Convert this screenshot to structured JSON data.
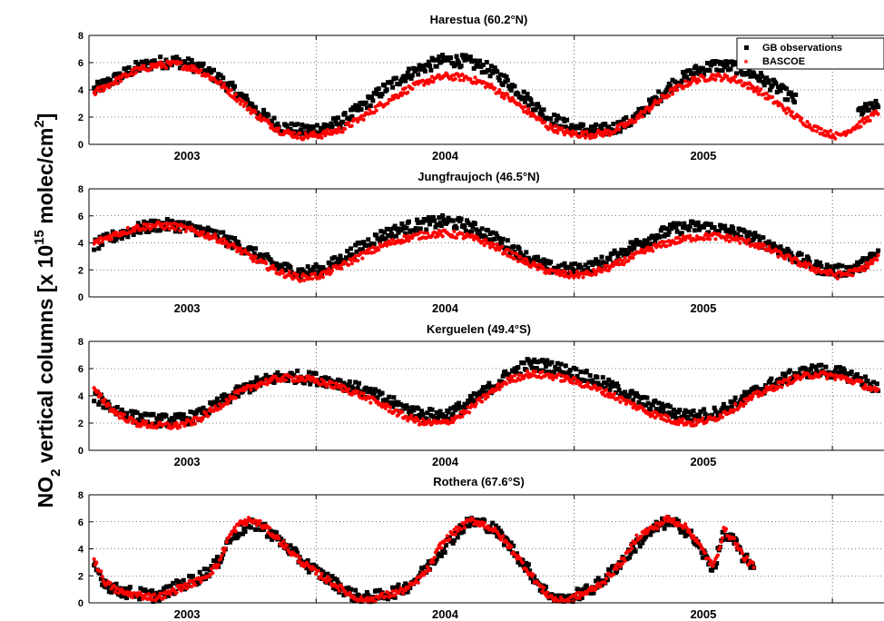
{
  "figure": {
    "ylabel_main": "NO",
    "ylabel_sub": "2",
    "ylabel_mid": " vertical columns [x 10",
    "ylabel_sup": "15",
    "ylabel_unit": " molec/cm",
    "ylabel_unit_sup": "2",
    "ylabel_end": "]"
  },
  "legend": {
    "obs_label": "GB observations",
    "model_label": "BASCOE",
    "obs_color": "#000000",
    "model_color": "#ff0000"
  },
  "chart_data": [
    {
      "type": "scatter",
      "title": "Harestua (60.2°N)",
      "xlim": [
        2002.62,
        2005.7
      ],
      "ylim": [
        0,
        8
      ],
      "yticks": [
        0,
        2,
        4,
        6,
        8
      ],
      "xticks": [
        2003,
        2004,
        2005
      ],
      "xtick_label_positions": [
        2003.0,
        2004.0,
        2005.0
      ],
      "grid": true,
      "legend_position": "top-right",
      "series": [
        {
          "name": "GB observations",
          "color": "#000000",
          "marker": "square",
          "x": [
            2002.64,
            2002.72,
            2002.8,
            2002.88,
            2002.96,
            2003.04,
            2003.12,
            2003.2,
            2003.28,
            2003.36,
            2003.44,
            2003.52,
            2003.6,
            2003.68,
            2003.76,
            2003.84,
            2003.92,
            2004.0,
            2004.08,
            2004.16,
            2004.24,
            2004.32,
            2004.4,
            2004.48,
            2004.56,
            2004.64,
            2004.72,
            2004.8,
            2004.88,
            2004.96,
            2005.04,
            2005.12,
            2005.2,
            2005.28,
            2005.36,
            2005.44,
            2005.52,
            2005.6,
            2005.68
          ],
          "y": [
            4.0,
            4.8,
            5.6,
            6.0,
            6.1,
            5.7,
            4.9,
            3.7,
            2.3,
            1.3,
            1.0,
            1.2,
            1.7,
            2.8,
            4.0,
            5.0,
            5.7,
            6.2,
            6.1,
            5.6,
            4.6,
            3.3,
            2.0,
            1.3,
            1.0,
            1.1,
            1.7,
            3.0,
            4.4,
            5.3,
            5.8,
            5.7,
            5.1,
            4.2,
            3.2,
            null,
            null,
            2.4,
            2.8
          ]
        },
        {
          "name": "BASCOE",
          "color": "#ff0000",
          "marker": "star",
          "x": [
            2002.64,
            2002.72,
            2002.8,
            2002.88,
            2002.96,
            2003.04,
            2003.12,
            2003.2,
            2003.28,
            2003.36,
            2003.44,
            2003.52,
            2003.6,
            2003.68,
            2003.76,
            2003.84,
            2003.92,
            2004.0,
            2004.08,
            2004.16,
            2004.24,
            2004.32,
            2004.4,
            2004.48,
            2004.56,
            2004.64,
            2004.72,
            2004.8,
            2004.88,
            2004.96,
            2005.04,
            2005.12,
            2005.2,
            2005.28,
            2005.36,
            2005.44,
            2005.52,
            2005.6,
            2005.68
          ],
          "y": [
            3.8,
            4.6,
            5.4,
            5.8,
            5.9,
            5.5,
            4.6,
            3.3,
            2.0,
            1.0,
            0.6,
            0.7,
            1.1,
            2.0,
            3.0,
            3.9,
            4.6,
            5.0,
            4.9,
            4.4,
            3.5,
            2.4,
            1.3,
            0.8,
            0.7,
            0.9,
            1.6,
            2.8,
            3.9,
            4.7,
            5.0,
            4.8,
            4.1,
            3.1,
            2.0,
            1.1,
            0.6,
            1.4,
            2.4
          ]
        }
      ]
    },
    {
      "type": "scatter",
      "title": "Jungfraujoch (46.5°N)",
      "xlim": [
        2002.62,
        2005.7
      ],
      "ylim": [
        0,
        8
      ],
      "yticks": [
        0,
        2,
        4,
        6,
        8
      ],
      "xticks": [
        2003,
        2004,
        2005
      ],
      "grid": true,
      "series": [
        {
          "name": "GB observations",
          "color": "#000000",
          "marker": "square",
          "x": [
            2002.64,
            2002.72,
            2002.8,
            2002.88,
            2002.96,
            2003.04,
            2003.12,
            2003.2,
            2003.28,
            2003.36,
            2003.44,
            2003.52,
            2003.6,
            2003.68,
            2003.76,
            2003.84,
            2003.92,
            2004.0,
            2004.08,
            2004.16,
            2004.24,
            2004.32,
            2004.4,
            2004.48,
            2004.56,
            2004.64,
            2004.72,
            2004.8,
            2004.88,
            2004.96,
            2005.04,
            2005.12,
            2005.2,
            2005.28,
            2005.36,
            2005.44,
            2005.52,
            2005.6,
            2005.68
          ],
          "y": [
            3.8,
            4.5,
            5.0,
            5.3,
            5.3,
            5.0,
            4.5,
            3.8,
            3.0,
            2.2,
            1.8,
            2.0,
            2.8,
            3.8,
            4.6,
            5.1,
            5.4,
            5.6,
            5.3,
            4.7,
            3.8,
            2.9,
            2.2,
            2.0,
            2.2,
            2.8,
            3.7,
            4.4,
            5.0,
            5.2,
            5.1,
            4.8,
            4.3,
            3.7,
            2.9,
            2.2,
            1.9,
            2.2,
            3.2
          ]
        },
        {
          "name": "BASCOE",
          "color": "#ff0000",
          "marker": "star",
          "x": [
            2002.64,
            2002.72,
            2002.8,
            2002.88,
            2002.96,
            2003.04,
            2003.12,
            2003.2,
            2003.28,
            2003.36,
            2003.44,
            2003.52,
            2003.6,
            2003.68,
            2003.76,
            2003.84,
            2003.92,
            2004.0,
            2004.08,
            2004.16,
            2004.24,
            2004.32,
            2004.4,
            2004.48,
            2004.56,
            2004.64,
            2004.72,
            2004.8,
            2004.88,
            2004.96,
            2005.04,
            2005.12,
            2005.2,
            2005.28,
            2005.36,
            2005.44,
            2005.52,
            2005.6,
            2005.68
          ],
          "y": [
            4.0,
            4.6,
            5.1,
            5.3,
            5.2,
            4.8,
            4.3,
            3.5,
            2.6,
            1.8,
            1.4,
            1.6,
            2.3,
            3.1,
            3.8,
            4.3,
            4.6,
            4.7,
            4.5,
            4.0,
            3.3,
            2.5,
            1.9,
            1.6,
            1.7,
            2.2,
            2.9,
            3.6,
            4.1,
            4.4,
            4.5,
            4.3,
            3.9,
            3.3,
            2.6,
            2.0,
            1.6,
            1.9,
            2.9
          ]
        }
      ]
    },
    {
      "type": "scatter",
      "title": "Kerguelen (49.4°S)",
      "xlim": [
        2002.62,
        2005.7
      ],
      "ylim": [
        0,
        8
      ],
      "yticks": [
        0,
        2,
        4,
        6,
        8
      ],
      "xticks": [
        2003,
        2004,
        2005
      ],
      "grid": true,
      "series": [
        {
          "name": "GB observations",
          "color": "#000000",
          "marker": "square",
          "x": [
            2002.64,
            2002.72,
            2002.8,
            2002.88,
            2002.96,
            2003.04,
            2003.12,
            2003.2,
            2003.28,
            2003.36,
            2003.44,
            2003.52,
            2003.6,
            2003.68,
            2003.76,
            2003.84,
            2003.92,
            2004.0,
            2004.08,
            2004.16,
            2004.24,
            2004.32,
            2004.4,
            2004.48,
            2004.56,
            2004.64,
            2004.72,
            2004.8,
            2004.88,
            2004.96,
            2005.04,
            2005.12,
            2005.2,
            2005.28,
            2005.36,
            2005.44,
            2005.52,
            2005.6,
            2005.68
          ],
          "y": [
            4.0,
            3.0,
            2.4,
            2.2,
            2.2,
            2.5,
            3.4,
            4.3,
            5.0,
            5.4,
            5.4,
            5.2,
            4.9,
            4.4,
            3.8,
            3.1,
            2.6,
            2.6,
            3.3,
            4.4,
            5.5,
            6.3,
            6.2,
            5.8,
            5.3,
            4.7,
            4.0,
            3.3,
            2.8,
            2.5,
            2.7,
            3.4,
            4.3,
            5.0,
            5.6,
            5.9,
            5.7,
            5.3,
            4.5
          ]
        },
        {
          "name": "BASCOE",
          "color": "#ff0000",
          "marker": "star",
          "x": [
            2002.64,
            2002.72,
            2002.8,
            2002.88,
            2002.96,
            2003.04,
            2003.12,
            2003.2,
            2003.28,
            2003.36,
            2003.44,
            2003.52,
            2003.6,
            2003.68,
            2003.76,
            2003.84,
            2003.92,
            2004.0,
            2004.08,
            2004.16,
            2004.24,
            2004.32,
            2004.4,
            2004.48,
            2004.56,
            2004.64,
            2004.72,
            2004.8,
            2004.88,
            2004.96,
            2005.04,
            2005.12,
            2005.2,
            2005.28,
            2005.36,
            2005.44,
            2005.52,
            2005.6,
            2005.68
          ],
          "y": [
            4.4,
            2.8,
            2.0,
            1.8,
            1.8,
            2.2,
            3.2,
            4.2,
            4.9,
            5.3,
            5.3,
            5.0,
            4.6,
            4.0,
            3.3,
            2.5,
            2.0,
            2.0,
            2.8,
            4.0,
            5.1,
            5.6,
            5.5,
            5.2,
            4.7,
            4.1,
            3.4,
            2.7,
            2.2,
            2.0,
            2.3,
            3.1,
            4.0,
            4.7,
            5.3,
            5.6,
            5.4,
            5.0,
            4.2
          ]
        }
      ]
    },
    {
      "type": "scatter",
      "title": "Rothera (67.6°S)",
      "xlim": [
        2002.62,
        2005.7
      ],
      "ylim": [
        0,
        8
      ],
      "yticks": [
        0,
        2,
        4,
        6,
        8
      ],
      "xticks": [
        2003,
        2004,
        2005
      ],
      "grid": true,
      "series": [
        {
          "name": "GB observations",
          "color": "#000000",
          "marker": "square",
          "x": [
            2002.64,
            2002.68,
            2002.72,
            2002.76,
            2002.8,
            2002.88,
            2002.92,
            2002.96,
            2003.0,
            2003.04,
            2003.08,
            2003.12,
            2003.16,
            2003.2,
            2003.24,
            2003.28,
            2003.32,
            2003.36,
            2003.4,
            2003.44,
            2003.48,
            2003.52,
            2003.56,
            2003.6,
            2003.64,
            2003.68,
            2003.72,
            2003.76,
            2003.82,
            2003.86,
            2003.9,
            2003.94,
            2003.98,
            2004.02,
            2004.06,
            2004.1,
            2004.14,
            2004.18,
            2004.22,
            2004.26,
            2004.3,
            2004.34,
            2004.38,
            2004.42,
            2004.46,
            2004.5,
            2004.54,
            2004.58,
            2004.62,
            2004.66,
            2004.7,
            2004.74,
            2004.78,
            2004.82,
            2004.86,
            2004.92,
            2004.96,
            2005.0,
            2005.04,
            2005.08,
            2005.12,
            2005.16,
            2005.2,
            2005.24,
            2005.28,
            2005.32,
            2005.36,
            2005.4,
            2005.44,
            2005.48,
            2005.52,
            2005.56,
            2005.6,
            2005.64,
            2005.68
          ],
          "y": [
            2.8,
            1.5,
            1.0,
            0.8,
            0.7,
            0.5,
            0.8,
            1.2,
            1.5,
            1.8,
            2.3,
            3.0,
            4.6,
            5.3,
            5.7,
            5.8,
            5.2,
            4.6,
            3.9,
            3.2,
            2.6,
            2.1,
            1.6,
            1.1,
            0.6,
            0.3,
            0.4,
            0.6,
            0.9,
            1.3,
            2.0,
            2.8,
            3.8,
            4.6,
            5.5,
            6.0,
            5.9,
            5.6,
            4.9,
            4.0,
            3.0,
            2.0,
            1.0,
            0.4,
            0.1,
            0.5,
            0.8,
            1.2,
            1.8,
            2.6,
            3.4,
            4.3,
            5.0,
            5.6,
            6.0,
            5.6,
            4.8,
            3.6,
            2.5,
            5.2,
            4.5,
            3.2,
            2.8,
            null,
            null,
            null,
            null,
            null,
            null,
            null,
            null,
            null,
            null,
            null,
            null
          ]
        },
        {
          "name": "BASCOE",
          "color": "#ff0000",
          "marker": "star",
          "x": [
            2002.64,
            2002.68,
            2002.72,
            2002.76,
            2002.8,
            2002.88,
            2002.92,
            2002.96,
            2003.0,
            2003.04,
            2003.08,
            2003.12,
            2003.16,
            2003.2,
            2003.24,
            2003.28,
            2003.32,
            2003.36,
            2003.4,
            2003.44,
            2003.48,
            2003.52,
            2003.56,
            2003.6,
            2003.64,
            2003.68,
            2003.72,
            2003.76,
            2003.82,
            2003.86,
            2003.9,
            2003.94,
            2003.98,
            2004.02,
            2004.06,
            2004.1,
            2004.14,
            2004.18,
            2004.22,
            2004.26,
            2004.3,
            2004.34,
            2004.38,
            2004.42,
            2004.46,
            2004.5,
            2004.54,
            2004.58,
            2004.62,
            2004.66,
            2004.7,
            2004.74,
            2004.78,
            2004.82,
            2004.86,
            2004.92,
            2004.96,
            2005.0,
            2005.04,
            2005.08,
            2005.12,
            2005.16,
            2005.2,
            2005.24,
            2005.28,
            2005.32,
            2005.36,
            2005.4,
            2005.44,
            2005.48,
            2005.52,
            2005.56,
            2005.6,
            2005.64,
            2005.68
          ],
          "y": [
            3.2,
            1.6,
            1.0,
            0.7,
            0.6,
            0.4,
            0.6,
            1.0,
            1.3,
            1.6,
            2.1,
            2.8,
            4.8,
            5.8,
            6.1,
            5.9,
            5.3,
            4.6,
            3.8,
            3.1,
            2.5,
            2.0,
            1.5,
            1.0,
            0.5,
            0.2,
            0.3,
            0.5,
            0.8,
            1.1,
            1.8,
            2.6,
            4.2,
            5.0,
            5.6,
            6.1,
            5.9,
            5.5,
            4.8,
            3.9,
            2.9,
            1.9,
            0.9,
            0.3,
            0.1,
            0.4,
            0.7,
            1.1,
            1.7,
            2.5,
            3.4,
            4.8,
            5.3,
            5.7,
            6.2,
            5.8,
            5.0,
            3.8,
            2.6,
            5.4,
            4.6,
            3.3,
            2.6,
            null,
            null,
            null,
            null,
            null,
            null,
            null,
            null,
            null,
            null,
            null,
            null
          ]
        }
      ]
    }
  ]
}
